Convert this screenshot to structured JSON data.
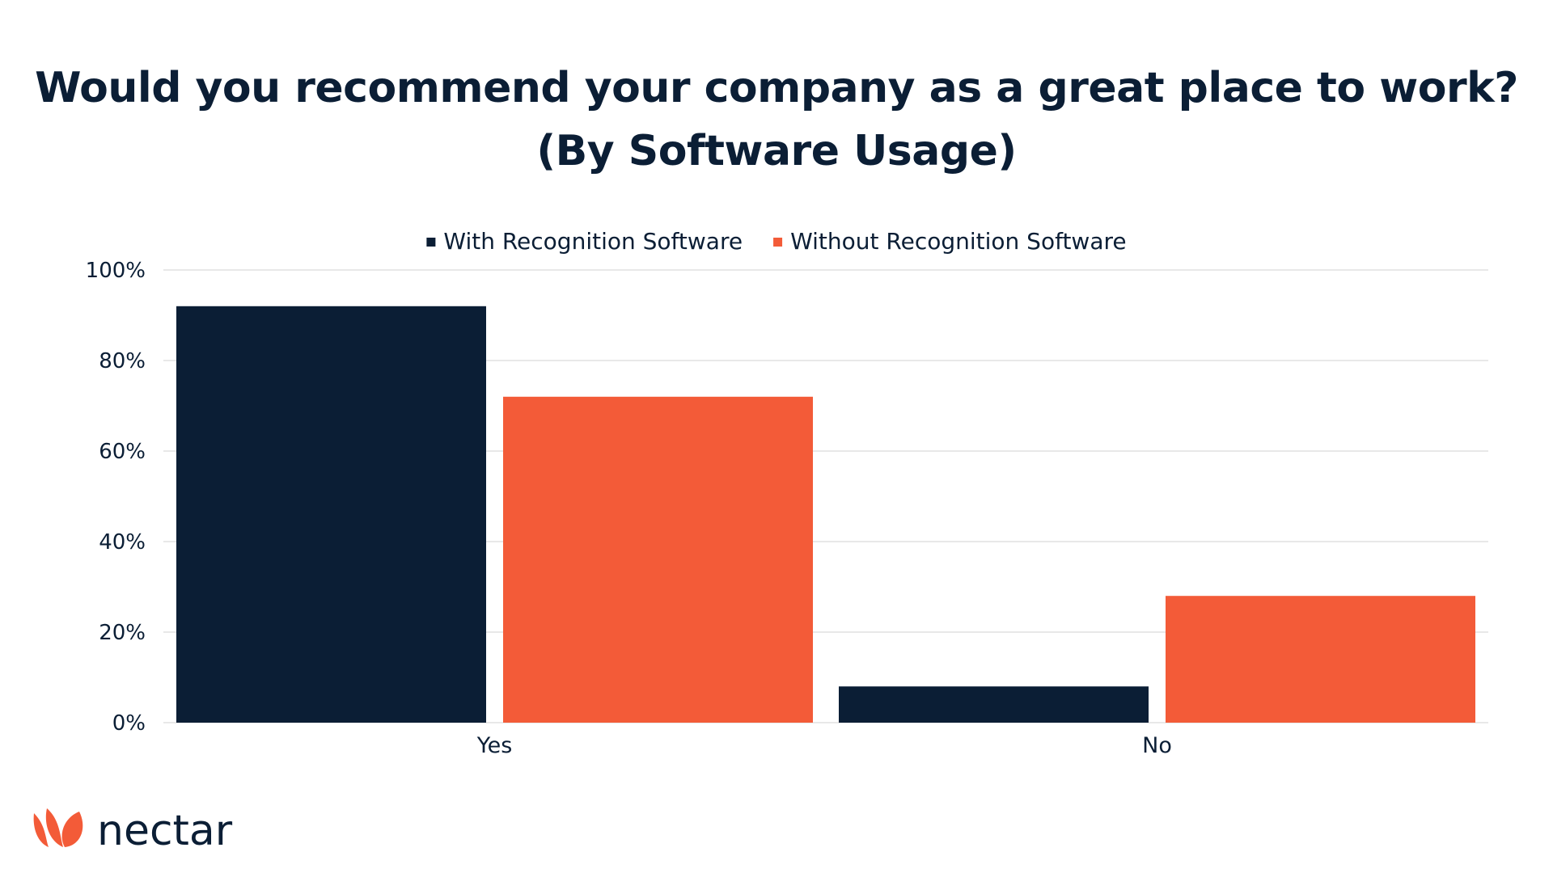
{
  "brand": {
    "name": "nectar",
    "accent": "#f35b38",
    "dark": "#0b1e35"
  },
  "chart_data": {
    "type": "bar",
    "title": "Would you recommend your company as a great place to work?",
    "subtitle": "(By Software Usage)",
    "categories": [
      "Yes",
      "No"
    ],
    "series": [
      {
        "name": "With Recognition Software",
        "values": [
          92,
          8
        ],
        "color": "#0b1e35"
      },
      {
        "name": "Without Recognition Software",
        "values": [
          72,
          28
        ],
        "color": "#f35b38"
      }
    ],
    "ylim": [
      0,
      100
    ],
    "yticks": [
      0,
      20,
      40,
      60,
      80,
      100
    ],
    "ytick_labels": [
      "0%",
      "20%",
      "40%",
      "60%",
      "80%",
      "100%"
    ],
    "grid": true,
    "legend_position": "top-center"
  }
}
